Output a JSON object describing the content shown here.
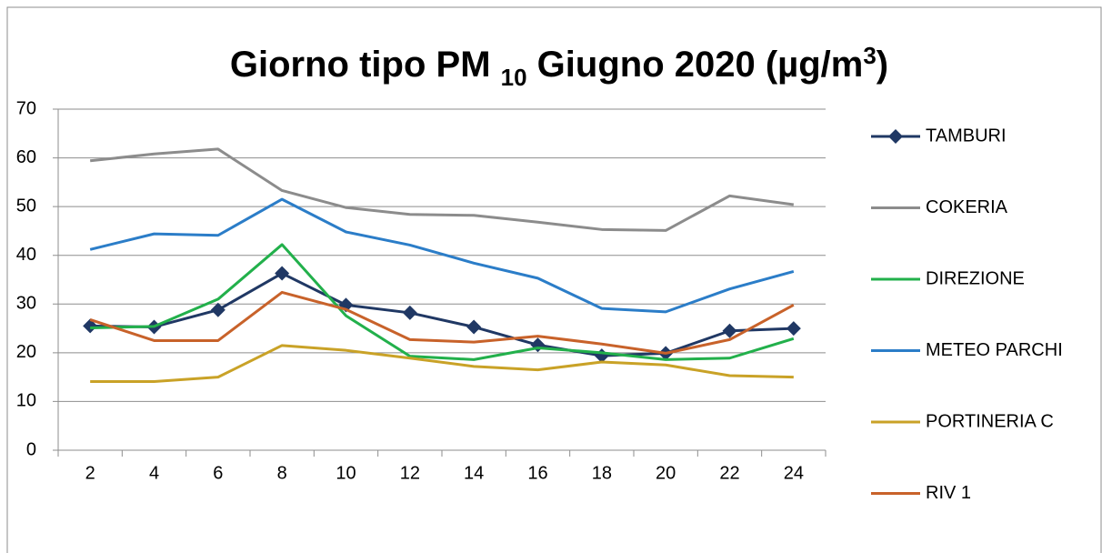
{
  "chart_data": {
    "type": "line",
    "title": [
      "Giorno tipo PM ",
      "10",
      " Giugno 2020 (µg/m",
      "3",
      ")"
    ],
    "categories": [
      2,
      4,
      6,
      8,
      10,
      12,
      14,
      16,
      18,
      20,
      22,
      24
    ],
    "series": [
      {
        "name": "TAMBURI",
        "color": "#203864",
        "marker": "diamond",
        "values": [
          25.5,
          25.3,
          28.8,
          36.3,
          29.8,
          28.2,
          25.3,
          21.6,
          19.4,
          19.9,
          24.5,
          25.0
        ]
      },
      {
        "name": "COKERIA",
        "color": "#8c8c8c",
        "values": [
          59.4,
          60.8,
          61.8,
          53.3,
          49.8,
          48.4,
          48.2,
          46.8,
          45.3,
          45.1,
          52.2,
          50.4
        ]
      },
      {
        "name": "DIREZIONE",
        "color": "#22b04b",
        "values": [
          25.1,
          25.4,
          31.0,
          42.2,
          27.6,
          19.3,
          18.6,
          21.0,
          20.0,
          18.6,
          18.9,
          22.9
        ]
      },
      {
        "name": "METEO PARCHI",
        "color": "#2b7dc8",
        "values": [
          41.2,
          44.4,
          44.1,
          51.5,
          44.8,
          42.1,
          38.4,
          35.3,
          29.1,
          28.4,
          33.1,
          36.7
        ]
      },
      {
        "name": "PORTINERIA C",
        "color": "#c9a227",
        "values": [
          14.1,
          14.1,
          15.0,
          21.5,
          20.5,
          18.9,
          17.2,
          16.5,
          18.1,
          17.5,
          15.3,
          15.0
        ]
      },
      {
        "name": "RIV 1",
        "color": "#c8622a",
        "values": [
          26.8,
          22.5,
          22.5,
          32.4,
          28.9,
          22.7,
          22.2,
          23.4,
          21.8,
          19.9,
          22.7,
          29.8
        ]
      }
    ],
    "ylim": [
      0,
      70
    ],
    "yticks": [
      0,
      10,
      20,
      30,
      40,
      50,
      60,
      70
    ],
    "grid": true
  }
}
